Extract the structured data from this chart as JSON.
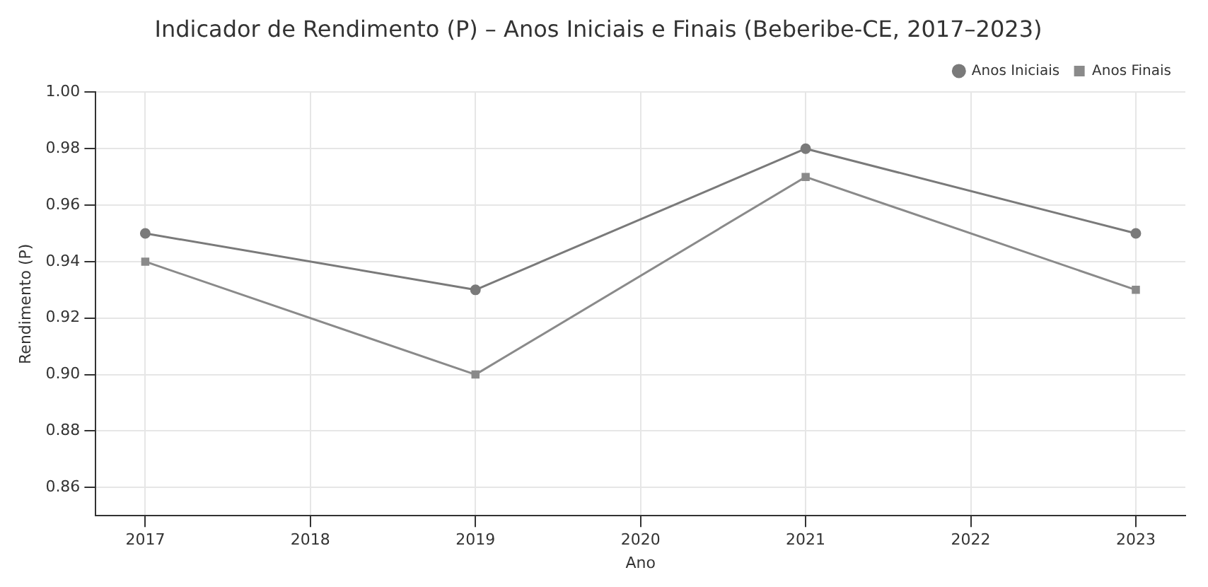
{
  "chart_data": {
    "type": "line",
    "title": "Indicador de Rendimento (P) – Anos Iniciais e Finais (Beberibe-CE, 2017–2023)",
    "xlabel": "Ano",
    "ylabel": "Rendimento (P)",
    "x": [
      2017,
      2019,
      2021,
      2023
    ],
    "series": [
      {
        "name": "Anos Iniciais",
        "color": "#7a7a7a",
        "marker": "circle",
        "values": [
          0.95,
          0.93,
          0.98,
          0.95
        ]
      },
      {
        "name": "Anos Finais",
        "color": "#8a8a8a",
        "marker": "square",
        "values": [
          0.94,
          0.9,
          0.97,
          0.93
        ]
      }
    ],
    "xlim": [
      2016.7,
      2023.3
    ],
    "xticks": [
      2017,
      2018,
      2019,
      2020,
      2021,
      2022,
      2023
    ],
    "ylim": [
      0.85,
      1.0
    ],
    "yticks": [
      0.86,
      0.88,
      {
        "value": 0.9,
        "label": "0.90"
      },
      0.92,
      0.94,
      0.96,
      0.98,
      {
        "value": 1.0,
        "label": "1.00"
      }
    ],
    "grid": true,
    "legend": "top right",
    "line_style": "solid"
  }
}
